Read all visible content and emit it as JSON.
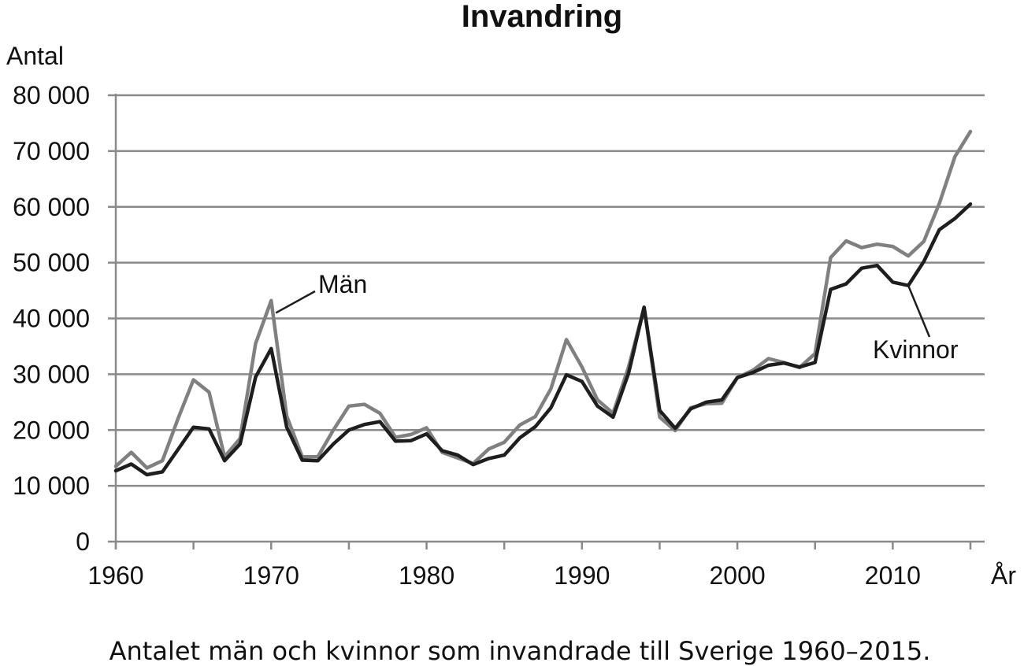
{
  "chart_data": {
    "type": "line",
    "title": "Invandring",
    "ylabel": "Antal",
    "xlabel": "År",
    "xlim": [
      1960,
      2015
    ],
    "ylim": [
      0,
      80000
    ],
    "x_ticks": [
      1960,
      1970,
      1980,
      1990,
      2000,
      2010
    ],
    "x_tick_labels": [
      "1960",
      "1970",
      "1980",
      "1990",
      "2000",
      "2010"
    ],
    "y_ticks": [
      0,
      10000,
      20000,
      30000,
      40000,
      50000,
      60000,
      70000,
      80000
    ],
    "y_tick_labels": [
      "0",
      "10 000",
      "20 000",
      "30 000",
      "40 000",
      "50 000",
      "60 000",
      "70 000",
      "80 000"
    ],
    "grid": "horizontal",
    "x": [
      1960,
      1961,
      1962,
      1963,
      1964,
      1965,
      1966,
      1967,
      1968,
      1969,
      1970,
      1971,
      1972,
      1973,
      1974,
      1975,
      1976,
      1977,
      1978,
      1979,
      1980,
      1981,
      1982,
      1983,
      1984,
      1985,
      1986,
      1987,
      1988,
      1989,
      1990,
      1991,
      1992,
      1993,
      1994,
      1995,
      1996,
      1997,
      1998,
      1999,
      2000,
      2001,
      2002,
      2003,
      2004,
      2005,
      2006,
      2007,
      2008,
      2009,
      2010,
      2011,
      2012,
      2013,
      2014,
      2015
    ],
    "series": [
      {
        "name": "Män",
        "color": "#808080",
        "values": [
          13500,
          16000,
          13200,
          14500,
          22000,
          29000,
          26800,
          15200,
          18500,
          35500,
          43200,
          22500,
          15200,
          15200,
          20000,
          24300,
          24600,
          23000,
          18700,
          19200,
          20400,
          16000,
          15000,
          14000,
          16600,
          17800,
          20900,
          22400,
          27400,
          36200,
          31300,
          25400,
          23000,
          31300,
          42000,
          22300,
          19900,
          24000,
          24700,
          24800,
          29400,
          30700,
          32800,
          32100,
          31200,
          33700,
          50900,
          53900,
          52700,
          53300,
          52900,
          51200,
          53800,
          60600,
          69000,
          73500
        ]
      },
      {
        "name": "Kvinnor",
        "color": "#1e1e1e",
        "values": [
          12700,
          13900,
          12000,
          12500,
          16500,
          20500,
          20200,
          14500,
          17500,
          29500,
          34600,
          20500,
          14600,
          14500,
          17500,
          20000,
          21000,
          21500,
          18000,
          18100,
          19300,
          16300,
          15500,
          13800,
          14900,
          15500,
          18600,
          20600,
          24000,
          29900,
          28700,
          24300,
          22300,
          30200,
          42000,
          23500,
          20300,
          23800,
          25000,
          25400,
          29400,
          30300,
          31600,
          32000,
          31300,
          32100,
          45200,
          46200,
          49000,
          49500,
          46500,
          45900,
          50200,
          55900,
          57900,
          60500
        ]
      }
    ],
    "annotations": [
      {
        "text": "Män",
        "series": "Män",
        "point_year": 1970.3
      },
      {
        "text": "Kvinnor",
        "series": "Kvinnor",
        "point_year": 2011
      }
    ]
  },
  "caption": "Antalet män och kvinnor som invandrade till Sverige 1960–2015."
}
